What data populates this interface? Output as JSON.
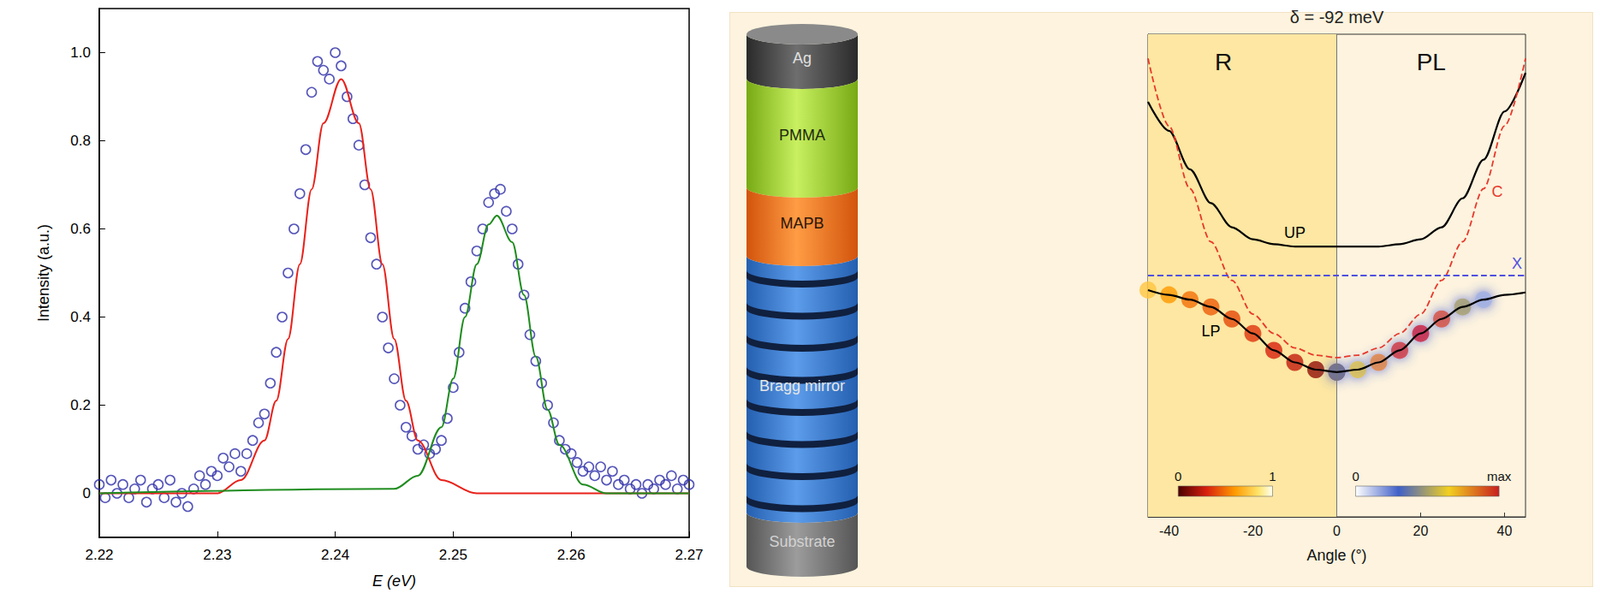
{
  "chart_data": [
    {
      "type": "scatter",
      "x_label": "E (eV)",
      "y_label": "Intensity (a.u.)",
      "xlim": [
        2.22,
        2.27
      ],
      "xticks": [
        2.22,
        2.23,
        2.24,
        2.25,
        2.26,
        2.27
      ],
      "ylim": [
        -0.1,
        1.1
      ],
      "yticks": [
        0,
        0.2,
        0.4,
        0.6,
        0.8,
        {
          "value": 1,
          "label": "1.0"
        }
      ],
      "grid": false,
      "series": [
        {
          "type": "scatter",
          "marker": "open_circle",
          "color": "#2a2aa8",
          "x": [
            2.22,
            2.2205,
            2.221,
            2.2215,
            2.222,
            2.2225,
            2.223,
            2.2235,
            2.224,
            2.2245,
            2.225,
            2.2255,
            2.226,
            2.2265,
            2.227,
            2.2275,
            2.228,
            2.2285,
            2.229,
            2.2295,
            2.23,
            2.2305,
            2.231,
            2.2315,
            2.232,
            2.2325,
            2.233,
            2.2335,
            2.234,
            2.2345,
            2.235,
            2.2355,
            2.236,
            2.2365,
            2.237,
            2.2375,
            2.238,
            2.2385,
            2.239,
            2.2395,
            2.24,
            2.2405,
            2.241,
            2.2415,
            2.242,
            2.2425,
            2.243,
            2.2435,
            2.244,
            2.2445,
            2.245,
            2.2455,
            2.246,
            2.2465,
            2.247,
            2.2475,
            2.248,
            2.2485,
            2.249,
            2.2495,
            2.25,
            2.2505,
            2.251,
            2.2515,
            2.252,
            2.2525,
            2.253,
            2.2535,
            2.254,
            2.2545,
            2.255,
            2.2555,
            2.256,
            2.2565,
            2.257,
            2.2575,
            2.258,
            2.2585,
            2.259,
            2.2595,
            2.26,
            2.2605,
            2.261,
            2.2615,
            2.262,
            2.2625,
            2.263,
            2.2635,
            2.264,
            2.2645,
            2.265,
            2.2655,
            2.266,
            2.2665,
            2.267,
            2.2675,
            2.268,
            2.2685,
            2.269,
            2.2695,
            2.27
          ],
          "values": [
            0.02,
            -0.01,
            0.03,
            0.0,
            0.02,
            -0.01,
            0.01,
            0.03,
            -0.02,
            0.01,
            0.02,
            -0.01,
            0.03,
            -0.02,
            0.0,
            -0.03,
            0.01,
            0.04,
            0.02,
            0.05,
            0.04,
            0.08,
            0.06,
            0.09,
            0.05,
            0.09,
            0.12,
            0.16,
            0.18,
            0.25,
            0.32,
            0.4,
            0.5,
            0.6,
            0.68,
            0.78,
            0.91,
            0.98,
            0.96,
            0.94,
            1.0,
            0.97,
            0.9,
            0.85,
            0.79,
            0.7,
            0.58,
            0.52,
            0.4,
            0.33,
            0.26,
            0.2,
            0.15,
            0.13,
            0.1,
            0.11,
            0.09,
            0.1,
            0.12,
            0.17,
            0.24,
            0.32,
            0.42,
            0.48,
            0.55,
            0.6,
            0.66,
            0.68,
            0.69,
            0.64,
            0.6,
            0.52,
            0.45,
            0.36,
            0.3,
            0.25,
            0.2,
            0.16,
            0.12,
            0.1,
            0.09,
            0.07,
            0.05,
            0.06,
            0.04,
            0.06,
            0.03,
            0.05,
            0.02,
            0.03,
            0.01,
            0.02,
            0.0,
            0.02,
            0.01,
            0.03,
            0.02,
            0.04,
            0.01,
            0.03,
            0.02
          ]
        },
        {
          "type": "line",
          "color": "#e8211a",
          "x": [
            2.22,
            2.23,
            2.232,
            2.234,
            2.235,
            2.236,
            2.237,
            2.238,
            2.239,
            2.2405,
            2.242,
            2.243,
            2.244,
            2.245,
            2.246,
            2.247,
            2.249,
            2.252,
            2.27
          ],
          "values": [
            0,
            0,
            0.03,
            0.12,
            0.21,
            0.35,
            0.52,
            0.69,
            0.84,
            0.94,
            0.84,
            0.69,
            0.52,
            0.35,
            0.21,
            0.12,
            0.03,
            0,
            0
          ]
        },
        {
          "type": "line",
          "color": "#1e8c1e",
          "x": [
            2.22,
            2.245,
            2.247,
            2.249,
            2.25,
            2.251,
            2.252,
            2.253,
            2.2537,
            2.255,
            2.256,
            2.257,
            2.258,
            2.259,
            2.261,
            2.263,
            2.27
          ],
          "values": [
            0,
            0.01,
            0.04,
            0.15,
            0.26,
            0.4,
            0.52,
            0.61,
            0.63,
            0.57,
            0.45,
            0.31,
            0.19,
            0.11,
            0.02,
            0,
            0
          ]
        }
      ]
    },
    {
      "type": "line",
      "title": "δ = -92 meV",
      "x_label": "Angle (°)",
      "xlim": [
        -45,
        45
      ],
      "xticks": [
        -40,
        -20,
        0,
        20,
        40
      ],
      "ylim": [
        0,
        1
      ],
      "tick_labels": "x",
      "grid": false,
      "x": [
        -45,
        -40,
        -35,
        -30,
        -25,
        -20,
        -15,
        -10,
        -5,
        0,
        5,
        10,
        15,
        20,
        25,
        30,
        35,
        40,
        45
      ],
      "series": [
        {
          "name": "UP",
          "color": "#000000",
          "line_style": "solid",
          "values": [
            0.86,
            0.8,
            0.72,
            0.65,
            0.6,
            0.575,
            0.565,
            0.56,
            0.56,
            0.56,
            0.56,
            0.56,
            0.565,
            0.575,
            0.6,
            0.66,
            0.74,
            0.84,
            0.92
          ]
        },
        {
          "name": "LP",
          "color": "#000000",
          "line_style": "solid",
          "values": [
            0.47,
            0.46,
            0.45,
            0.435,
            0.41,
            0.38,
            0.345,
            0.32,
            0.305,
            0.3,
            0.305,
            0.32,
            0.345,
            0.38,
            0.41,
            0.435,
            0.45,
            0.46,
            0.465
          ]
        },
        {
          "name": "C",
          "color": "#e8382c",
          "line_style": "dashed",
          "values": [
            0.95,
            0.81,
            0.68,
            0.57,
            0.49,
            0.42,
            0.38,
            0.35,
            0.335,
            0.33,
            0.335,
            0.35,
            0.38,
            0.42,
            0.49,
            0.57,
            0.68,
            0.81,
            0.95
          ]
        },
        {
          "name": "X",
          "color": "#5050e0",
          "line_style": "dashed",
          "values": [
            0.5,
            0.5,
            0.5,
            0.5,
            0.5,
            0.5,
            0.5,
            0.5,
            0.5,
            0.5,
            0.5,
            0.5,
            0.5,
            0.5,
            0.5,
            0.5,
            0.5,
            0.5,
            0.5
          ]
        }
      ],
      "maps": [
        {
          "name": "R",
          "along": "LP",
          "values": [
            0.75,
            0.6,
            0.5,
            0.45,
            0.4,
            0.35,
            0.3,
            0.25,
            0.15,
            0.1,
            null,
            null,
            null,
            null,
            null,
            null,
            null,
            null,
            null
          ],
          "colorbar": {
            "range": [
              0,
              1
            ],
            "ticks": [
              0,
              1
            ]
          }
        },
        {
          "name": "PL",
          "along": "LP",
          "values": [
            null,
            null,
            null,
            null,
            null,
            null,
            null,
            null,
            null,
            0.4,
            0.6,
            0.8,
            0.95,
            1.0,
            0.9,
            0.5,
            0.15,
            null,
            null
          ],
          "colorbar": {
            "range": [
              0,
              1
            ],
            "ticks": [
              0,
              {
                "value": 1,
                "label": "max"
              }
            ]
          }
        }
      ]
    }
  ],
  "diagram": {
    "layers": [
      "Ag",
      "PMMA",
      "MAPB",
      "Bragg mirror",
      "Substrate"
    ]
  }
}
